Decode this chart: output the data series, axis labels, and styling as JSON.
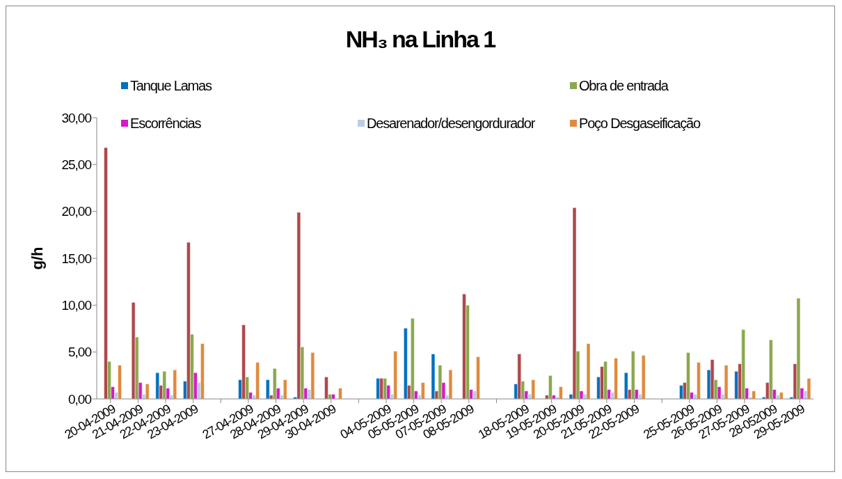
{
  "chart_data": {
    "type": "bar",
    "title": "NH₃ na Linha 1",
    "ylabel": "g/h",
    "categories": [
      "20-04-2009",
      "21-04-2009",
      "22-04-2009",
      "23-04-2009",
      null,
      "27-04-2009",
      "28-04-2009",
      "29-04-2009",
      "30-04-2009",
      null,
      "04-05-2009",
      "05-05-2009",
      "07-05-2009",
      "08-05-2009",
      null,
      "18-05-2009",
      "19-05-2009",
      "20-05-2009",
      "21-05-2009",
      "22-05-2009",
      null,
      "25-05-2009",
      "26-05-2009",
      "27-05-2009",
      "28-052009",
      "29-05-2009"
    ],
    "series": [
      {
        "name": "Tanque Lamas",
        "color": "#0070c0",
        "values": [
          null,
          null,
          2.8,
          1.9,
          null,
          2.05,
          2.05,
          0.2,
          null,
          null,
          2.2,
          7.55,
          4.8,
          null,
          null,
          1.6,
          null,
          0.5,
          2.35,
          2.8,
          null,
          1.45,
          3.1,
          2.95,
          0.2,
          0.2
        ]
      },
      {
        "color": "#b0474a",
        "values": [
          26.8,
          10.3,
          1.45,
          16.7,
          null,
          7.9,
          0.4,
          19.9,
          2.35,
          null,
          2.2,
          1.45,
          0.85,
          11.2,
          null,
          4.8,
          0.4,
          20.4,
          3.45,
          1.0,
          null,
          1.75,
          4.2,
          3.75,
          1.75,
          3.75
        ]
      },
      {
        "name": "Obra de entrada",
        "color": "#8aa84e",
        "values": [
          4.0,
          6.6,
          2.95,
          6.9,
          null,
          2.35,
          3.25,
          5.55,
          0.5,
          null,
          2.2,
          8.6,
          3.6,
          10.0,
          null,
          1.9,
          2.5,
          5.1,
          4.0,
          5.1,
          null,
          4.95,
          2.05,
          7.4,
          6.3,
          10.75
        ]
      },
      {
        "name": "Escorrências",
        "color": "#d61ac8",
        "values": [
          1.3,
          1.75,
          1.15,
          2.8,
          null,
          0.7,
          1.15,
          1.15,
          0.5,
          null,
          1.45,
          0.85,
          1.75,
          1.0,
          null,
          0.85,
          0.4,
          0.85,
          1.0,
          1.0,
          null,
          0.7,
          1.3,
          1.15,
          1.0,
          1.15
        ]
      },
      {
        "name": "Desarenador/desengordurador",
        "color": "#b9cde5",
        "values": [
          0.7,
          0.5,
          0.4,
          1.75,
          null,
          0.4,
          0.4,
          1.0,
          null,
          null,
          0.5,
          0.4,
          0.4,
          0.85,
          null,
          0.5,
          0.2,
          0.5,
          0.7,
          0.5,
          null,
          0.5,
          0.5,
          0.2,
          0.4,
          0.85
        ]
      },
      {
        "name": "Poço Desgaseificação",
        "color": "#e08a3c",
        "values": [
          3.6,
          1.6,
          3.1,
          5.9,
          null,
          3.9,
          2.05,
          4.95,
          1.15,
          null,
          5.1,
          1.75,
          3.1,
          4.5,
          null,
          2.05,
          1.3,
          5.9,
          4.35,
          4.65,
          null,
          3.9,
          3.6,
          0.85,
          0.7,
          2.2
        ]
      }
    ],
    "ylim": [
      0,
      30
    ],
    "yticks": [
      {
        "value": 0,
        "label": "0,00"
      },
      {
        "value": 5,
        "label": "5,00"
      },
      {
        "value": 10,
        "label": "10,00"
      },
      {
        "value": 15,
        "label": "15,00"
      },
      {
        "value": 20,
        "label": "20,00"
      },
      {
        "value": 25,
        "label": "25,00"
      },
      {
        "value": 30,
        "label": "30,00"
      }
    ],
    "grid": false,
    "legend": "top"
  }
}
